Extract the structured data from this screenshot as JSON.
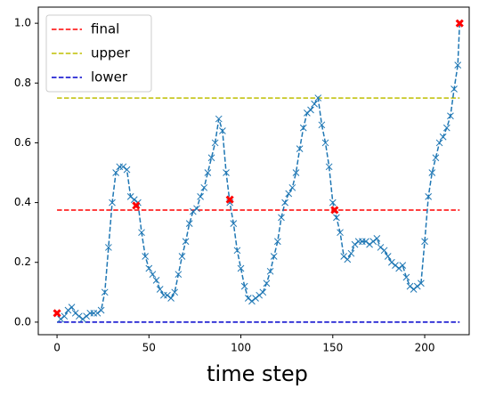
{
  "chart_data": {
    "type": "line",
    "xlabel": "time step",
    "xlim": [
      -10.2,
      224.2
    ],
    "ylim": [
      -0.042,
      1.054
    ],
    "xticks": [
      0,
      50,
      100,
      150,
      200
    ],
    "yticks": [
      {
        "value": 0,
        "label": "0.0"
      },
      {
        "value": 0.2,
        "label": "0.2"
      },
      {
        "value": 0.4,
        "label": "0.4"
      },
      {
        "value": 0.6,
        "label": "0.6"
      },
      {
        "value": 0.8,
        "label": "0.8"
      },
      {
        "value": 1.0,
        "label": "1.0"
      }
    ],
    "legend": "upper left",
    "trace": {
      "color": "#1f77b4",
      "x": [
        0,
        2,
        4,
        6,
        8,
        10,
        12,
        14,
        16,
        18,
        20,
        22,
        24,
        26,
        28,
        30,
        32,
        34,
        36,
        38,
        40,
        42,
        44,
        46,
        48,
        50,
        52,
        54,
        56,
        58,
        60,
        62,
        64,
        66,
        68,
        70,
        72,
        74,
        76,
        78,
        80,
        82,
        84,
        86,
        88,
        90,
        92,
        94,
        96,
        98,
        100,
        102,
        104,
        106,
        108,
        110,
        112,
        114,
        116,
        118,
        120,
        122,
        124,
        126,
        128,
        130,
        132,
        134,
        136,
        138,
        140,
        142,
        144,
        146,
        148,
        150,
        152,
        154,
        156,
        158,
        160,
        162,
        164,
        166,
        168,
        170,
        172,
        174,
        176,
        178,
        180,
        182,
        184,
        186,
        188,
        190,
        192,
        194,
        196,
        198,
        200,
        202,
        204,
        206,
        208,
        210,
        212,
        214,
        216,
        218,
        219
      ],
      "values": [
        0.03,
        0.01,
        0.02,
        0.04,
        0.05,
        0.03,
        0.02,
        0.01,
        0.02,
        0.03,
        0.03,
        0.03,
        0.04,
        0.1,
        0.25,
        0.4,
        0.5,
        0.52,
        0.52,
        0.51,
        0.42,
        0.41,
        0.4,
        0.3,
        0.22,
        0.18,
        0.16,
        0.14,
        0.11,
        0.09,
        0.09,
        0.08,
        0.1,
        0.16,
        0.22,
        0.27,
        0.33,
        0.37,
        0.38,
        0.42,
        0.45,
        0.5,
        0.55,
        0.6,
        0.68,
        0.64,
        0.5,
        0.4,
        0.33,
        0.24,
        0.18,
        0.12,
        0.08,
        0.07,
        0.08,
        0.09,
        0.1,
        0.13,
        0.17,
        0.22,
        0.27,
        0.35,
        0.4,
        0.43,
        0.45,
        0.5,
        0.58,
        0.65,
        0.7,
        0.71,
        0.73,
        0.75,
        0.66,
        0.6,
        0.52,
        0.4,
        0.35,
        0.3,
        0.22,
        0.21,
        0.23,
        0.26,
        0.27,
        0.27,
        0.27,
        0.26,
        0.27,
        0.28,
        0.25,
        0.24,
        0.22,
        0.2,
        0.19,
        0.18,
        0.19,
        0.15,
        0.12,
        0.11,
        0.12,
        0.13,
        0.27,
        0.42,
        0.5,
        0.55,
        0.6,
        0.62,
        0.65,
        0.69,
        0.78,
        0.86,
        1.0
      ]
    },
    "highlights": {
      "color": "#ff0000",
      "x": [
        0,
        43,
        94,
        151,
        219
      ],
      "values": [
        0.03,
        0.39,
        0.41,
        0.375,
        1.0
      ]
    },
    "series": [
      {
        "name": "final",
        "color": "#ff0000",
        "x": [
          0,
          219
        ],
        "values": [
          0.375,
          0.375
        ]
      },
      {
        "name": "upper",
        "color": "#bfbf00",
        "x": [
          0,
          219
        ],
        "values": [
          0.75,
          0.75
        ]
      },
      {
        "name": "lower",
        "color": "#0000cc",
        "x": [
          0,
          219
        ],
        "values": [
          0.0,
          0.0
        ]
      }
    ]
  }
}
